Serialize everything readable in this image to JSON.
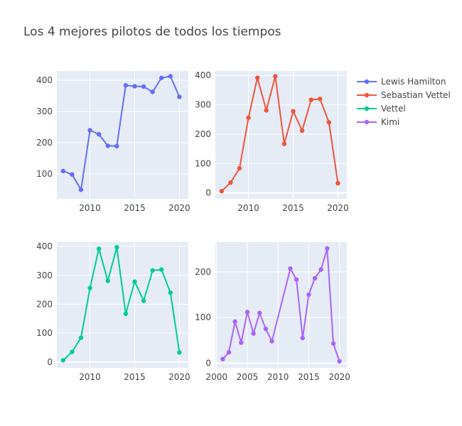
{
  "title": "Los 4 mejores pilotos de todos los tiempos",
  "colors": {
    "plot_bg": "#E5ECF6",
    "grid": "#FFFFFF"
  },
  "chart_data": {
    "type": "line",
    "title": "Los 4 mejores pilotos de todos los tiempos",
    "grid": true,
    "legend_placement": "top-right",
    "legend": [
      "Lewis Hamilton",
      "Sebastian Vettel",
      "Vettel",
      "Kimi"
    ],
    "subplots": [
      {
        "name": "Lewis Hamilton",
        "color": "#636EFA",
        "xlim": [
          2006.3,
          2021
        ],
        "ylim": [
          20,
          430
        ],
        "xticks": [
          2010,
          2015,
          2020
        ],
        "yticks": [
          100,
          200,
          300,
          400
        ],
        "x": [
          2007,
          2008,
          2009,
          2010,
          2011,
          2012,
          2013,
          2014,
          2015,
          2016,
          2017,
          2018,
          2019,
          2020
        ],
        "y": [
          109,
          98,
          49,
          240,
          227,
          190,
          189,
          384,
          381,
          380,
          363,
          408,
          413,
          347
        ]
      },
      {
        "name": "Sebastian Vettel",
        "color": "#EF553B",
        "xlim": [
          2006.3,
          2021
        ],
        "ylim": [
          -20,
          415
        ],
        "xticks": [
          2010,
          2015,
          2020
        ],
        "yticks": [
          0,
          100,
          200,
          300,
          400
        ],
        "x": [
          2007,
          2008,
          2009,
          2010,
          2011,
          2012,
          2013,
          2014,
          2015,
          2016,
          2017,
          2018,
          2019,
          2020
        ],
        "y": [
          6,
          35,
          84,
          256,
          392,
          281,
          397,
          167,
          278,
          212,
          317,
          320,
          240,
          33
        ]
      },
      {
        "name": "Vettel",
        "color": "#00CC96",
        "xlim": [
          2006.3,
          2021
        ],
        "ylim": [
          -20,
          415
        ],
        "xticks": [
          2010,
          2015,
          2020
        ],
        "yticks": [
          0,
          100,
          200,
          300,
          400
        ],
        "x": [
          2007,
          2008,
          2009,
          2010,
          2011,
          2012,
          2013,
          2014,
          2015,
          2016,
          2017,
          2018,
          2019,
          2020
        ],
        "y": [
          6,
          35,
          84,
          256,
          392,
          281,
          397,
          167,
          278,
          212,
          317,
          320,
          240,
          33
        ]
      },
      {
        "name": "Kimi",
        "color": "#AB63FA",
        "xlim": [
          1999.8,
          2021.2
        ],
        "ylim": [
          -10,
          265
        ],
        "xticks": [
          2000,
          2005,
          2010,
          2015,
          2020
        ],
        "yticks": [
          0,
          100,
          200
        ],
        "x": [
          2001,
          2002,
          2003,
          2004,
          2005,
          2006,
          2007,
          2008,
          2009,
          2012,
          2013,
          2014,
          2015,
          2016,
          2017,
          2018,
          2019,
          2020
        ],
        "y": [
          9,
          24,
          91,
          45,
          112,
          65,
          110,
          75,
          48,
          207,
          183,
          55,
          150,
          186,
          205,
          251,
          43,
          4
        ]
      }
    ]
  }
}
